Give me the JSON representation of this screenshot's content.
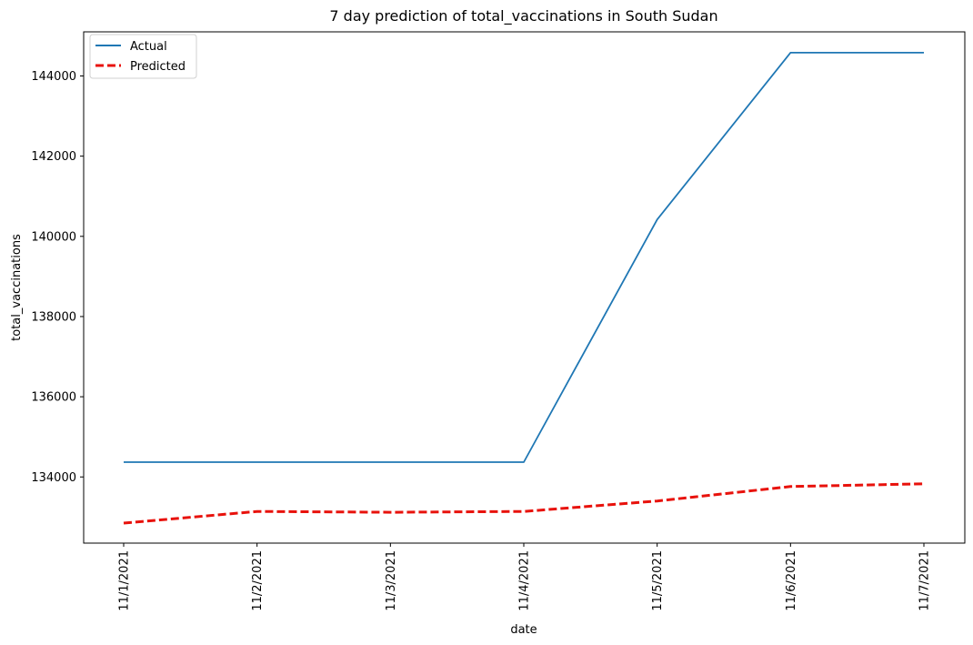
{
  "chart_data": {
    "type": "line",
    "title": "7 day prediction of total_vaccinations in South Sudan",
    "xlabel": "date",
    "ylabel": "total_vaccinations",
    "categories": [
      "11/1/2021",
      "11/2/2021",
      "11/3/2021",
      "11/4/2021",
      "11/5/2021",
      "11/6/2021",
      "11/7/2021"
    ],
    "series": [
      {
        "name": "Actual",
        "color": "#1f77b4",
        "style": "solid",
        "values": [
          134370,
          134370,
          134370,
          134370,
          140420,
          144580,
          144580
        ]
      },
      {
        "name": "Predicted",
        "color": "#e8120c",
        "style": "dashed",
        "values": [
          132850,
          133140,
          133120,
          133140,
          133400,
          133760,
          133830
        ]
      }
    ],
    "yticks": [
      134000,
      136000,
      138000,
      140000,
      142000,
      144000
    ],
    "ylim": [
      132350,
      145100
    ],
    "legend_position": "top-left",
    "grid": false
  }
}
